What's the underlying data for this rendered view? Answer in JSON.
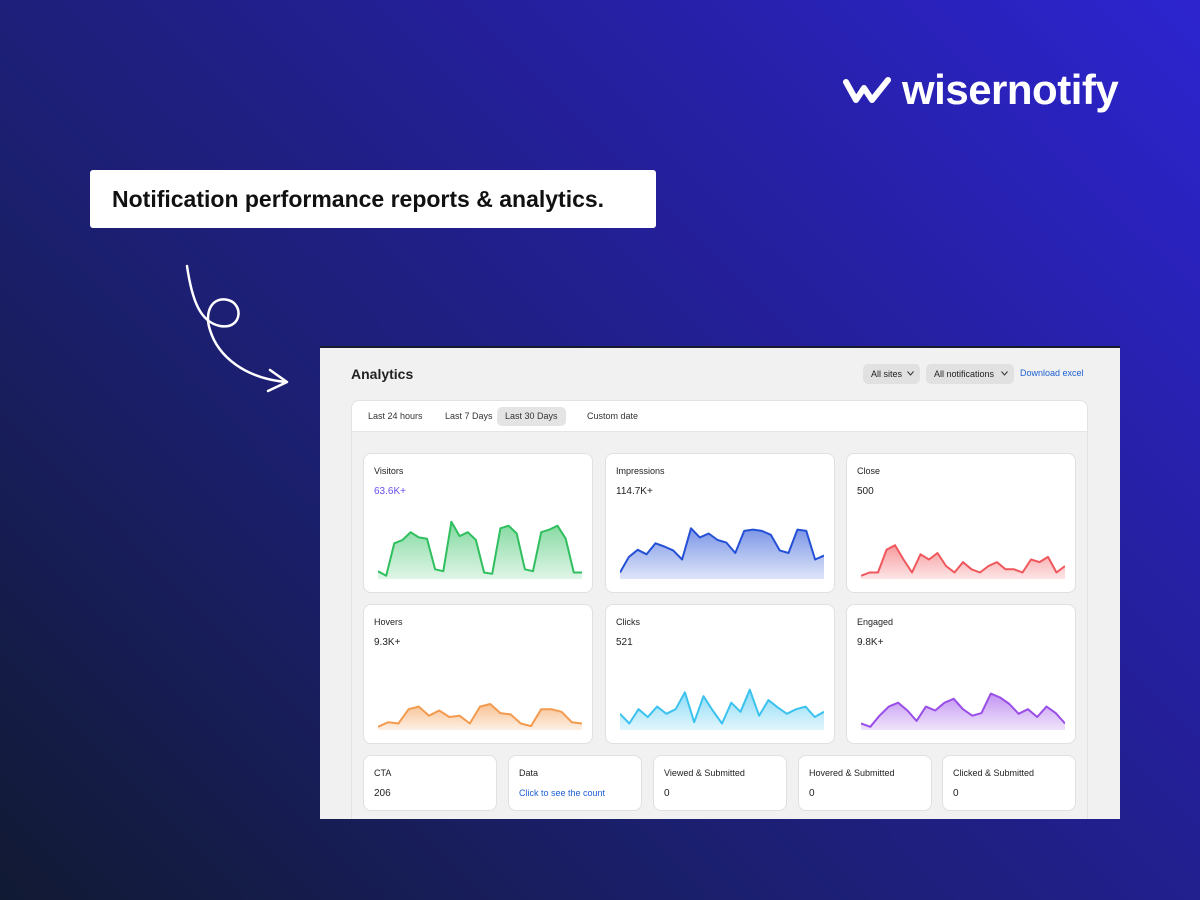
{
  "brand": {
    "logo_text": "wisernotify"
  },
  "headline": "Notification performance reports & analytics.",
  "app": {
    "title": "Analytics",
    "filters": [
      "All sites",
      "All notifications"
    ],
    "download": "Download excel",
    "tabs": [
      "Last 24 hours",
      "Last 7 Days",
      "Last 30 Days",
      "Custom date"
    ],
    "active_tab": 2
  },
  "metric_cards": [
    {
      "title": "Visitors",
      "value": "63.6K+",
      "value_color": "#6a4ff0",
      "color": "#2fbf5f",
      "values": [
        12,
        5,
        55,
        60,
        72,
        64,
        62,
        15,
        12,
        88,
        66,
        72,
        60,
        10,
        8,
        78,
        82,
        70,
        15,
        12,
        72,
        76,
        82,
        62,
        10,
        10
      ]
    },
    {
      "title": "Impressions",
      "value": "114.7K+",
      "color": "#2450d6",
      "values": [
        10,
        34,
        45,
        38,
        55,
        50,
        44,
        30,
        78,
        64,
        70,
        60,
        56,
        40,
        74,
        76,
        74,
        68,
        44,
        40,
        76,
        74,
        30,
        36
      ]
    },
    {
      "title": "Close",
      "value": "500",
      "color": "#f0575c",
      "values": [
        5,
        10,
        10,
        45,
        52,
        30,
        10,
        38,
        30,
        40,
        20,
        10,
        26,
        15,
        10,
        20,
        26,
        15,
        15,
        10,
        30,
        26,
        34,
        10,
        20
      ]
    },
    {
      "title": "Hovers",
      "value": "9.3K+",
      "color": "#f39a4e",
      "values": [
        5,
        12,
        10,
        32,
        36,
        22,
        30,
        20,
        22,
        10,
        36,
        40,
        26,
        24,
        10,
        6,
        32,
        32,
        28,
        12,
        10
      ]
    },
    {
      "title": "Clicks",
      "value": "521",
      "color": "#3cc2ef",
      "values": [
        25,
        10,
        32,
        20,
        36,
        25,
        32,
        58,
        12,
        52,
        30,
        10,
        42,
        28,
        62,
        22,
        46,
        35,
        25,
        32,
        36,
        20,
        28
      ]
    },
    {
      "title": "Engaged",
      "value": "9.8K+",
      "color": "#9a4ee8",
      "values": [
        10,
        5,
        22,
        36,
        42,
        30,
        14,
        36,
        30,
        42,
        48,
        32,
        22,
        26,
        56,
        50,
        40,
        25,
        32,
        20,
        36,
        26,
        10
      ]
    }
  ],
  "stat_cards": [
    {
      "title": "CTA",
      "value": 206
    },
    {
      "title": "Data",
      "link": "Click to see the count"
    },
    {
      "title": "Viewed & Submitted",
      "value": 0
    },
    {
      "title": "Hovered & Submitted",
      "value": 0
    },
    {
      "title": "Clicked & Submitted",
      "value": 0
    }
  ]
}
